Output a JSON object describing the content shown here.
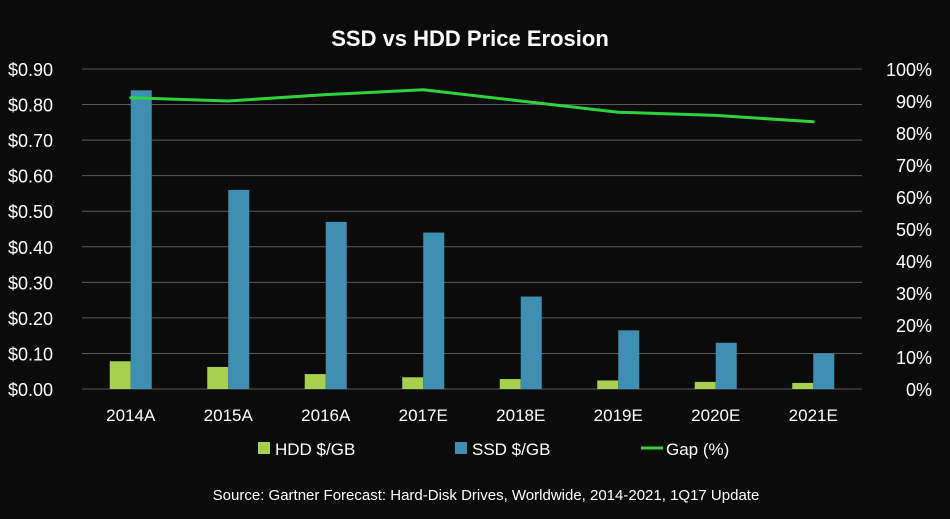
{
  "chart_data": {
    "type": "bar",
    "title": "SSD vs HDD Price Erosion",
    "categories": [
      "2014A",
      "2015A",
      "2016A",
      "2017E",
      "2018E",
      "2019E",
      "2020E",
      "2021E"
    ],
    "series": [
      {
        "name": "HDD $/GB",
        "type": "bar",
        "axis": "left",
        "color": "#a9cf4f",
        "values": [
          0.078,
          0.062,
          0.042,
          0.033,
          0.028,
          0.024,
          0.02,
          0.017
        ]
      },
      {
        "name": "SSD $/GB",
        "type": "bar",
        "axis": "left",
        "color": "#3f8fb3",
        "values": [
          0.84,
          0.56,
          0.47,
          0.44,
          0.26,
          0.165,
          0.13,
          0.1
        ]
      },
      {
        "name": "Gap (%)",
        "type": "line",
        "axis": "right",
        "color": "#2ed33a",
        "values": [
          91,
          90,
          92,
          93.5,
          90,
          86.5,
          85.5,
          83.5
        ]
      }
    ],
    "y_left": {
      "min": 0,
      "max": 0.9,
      "ticks": [
        "$0.00",
        "$0.10",
        "$0.20",
        "$0.30",
        "$0.40",
        "$0.50",
        "$0.60",
        "$0.70",
        "$0.80",
        "$0.90"
      ]
    },
    "y_right": {
      "min": 0,
      "max": 100,
      "ticks": [
        "0%",
        "10%",
        "20%",
        "30%",
        "40%",
        "50%",
        "60%",
        "70%",
        "80%",
        "90%",
        "100%"
      ]
    },
    "grid": true,
    "legend_position": "bottom",
    "source": "Source: Gartner Forecast: Hard-Disk Drives, Worldwide, 2014-2021, 1Q17 Update"
  }
}
